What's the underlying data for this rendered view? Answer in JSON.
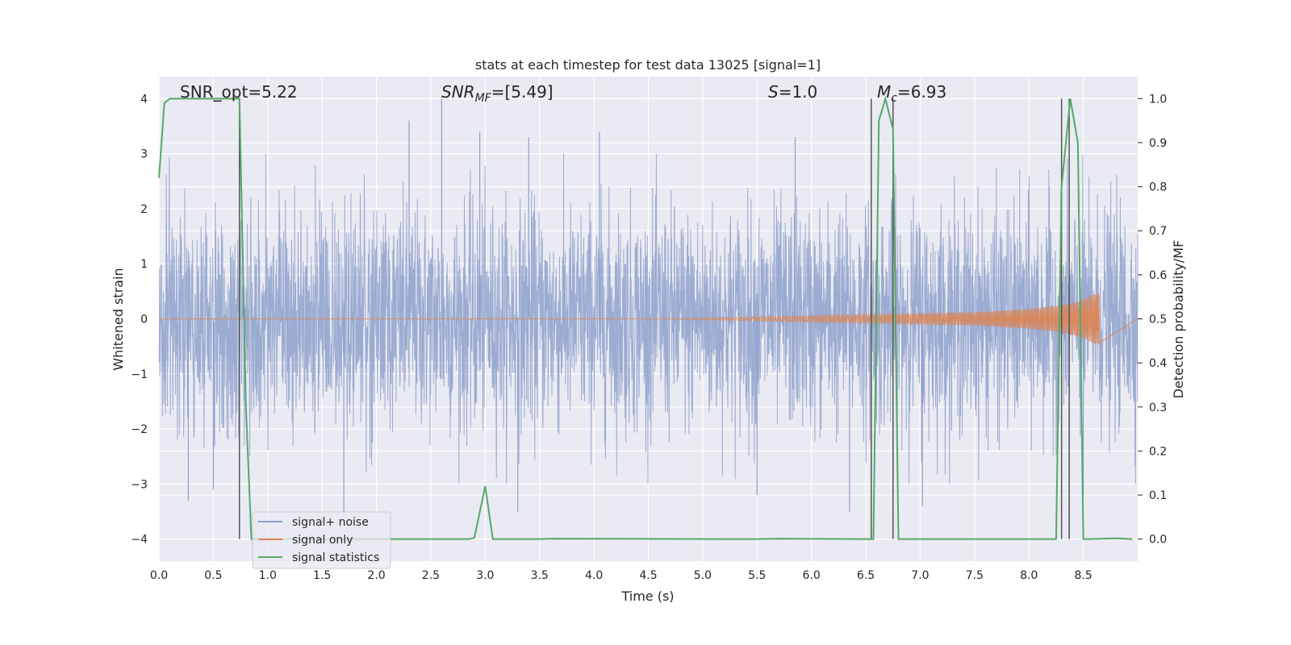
{
  "chart_data": {
    "type": "line",
    "title": "stats at each timestep for test data 13025 [signal=1]",
    "xlabel": "Time (s)",
    "ylabel": "Whitened strain",
    "ylabel_right": "Detection probability/MF",
    "xlim": [
      0.0,
      9.0
    ],
    "ylim": [
      -4.4,
      4.4
    ],
    "ylim_right": [
      -0.05,
      1.05
    ],
    "grid": true,
    "x_ticks": [
      "0.0",
      "0.5",
      "1.0",
      "1.5",
      "2.0",
      "2.5",
      "3.0",
      "3.5",
      "4.0",
      "4.5",
      "5.0",
      "5.5",
      "6.0",
      "6.5",
      "7.0",
      "7.5",
      "8.0",
      "8.5"
    ],
    "y_ticks": [
      "4",
      "3",
      "2",
      "1",
      "0",
      "−1",
      "−2",
      "−3",
      "−4"
    ],
    "y_ticks_right": [
      "1.0",
      "0.9",
      "0.8",
      "0.7",
      "0.6",
      "0.5",
      "0.4",
      "0.3",
      "0.2",
      "0.1",
      "0.0"
    ],
    "annotations": {
      "snr_opt": "SNR_opt=5.22",
      "snr_mf_main": "SNR",
      "snr_mf_sub": "MF",
      "snr_mf_val": "=[5.49]",
      "s_main": "S",
      "s_val": "=1.0",
      "mc_main": "M",
      "mc_sub": "c",
      "mc_val": "=6.93"
    },
    "legend": {
      "position": "lower-left",
      "entries": [
        "signal+ noise",
        "signal only",
        "signal statistics"
      ]
    },
    "colors": {
      "noise": "#8da0cb",
      "signal": "#dd8452",
      "statistics": "#55a868",
      "markers": "#555555",
      "background": "#eaeaf2",
      "grid": "#ffffff"
    },
    "series": [
      {
        "name": "signal+ noise",
        "axis": "left",
        "description_values": "white-noise strain, std approx 1.0, range approx [-3.6, 4.0]",
        "std": 1.0,
        "x_range": [
          0.0,
          9.0
        ],
        "peaks": [
          {
            "x": 0.27,
            "y": -3.3
          },
          {
            "x": 0.5,
            "y": -3.1
          },
          {
            "x": 1.7,
            "y": -3.6
          },
          {
            "x": 2.3,
            "y": 3.6
          },
          {
            "x": 2.6,
            "y": 4.0
          },
          {
            "x": 2.95,
            "y": 3.4
          },
          {
            "x": 3.3,
            "y": -3.5
          },
          {
            "x": 3.4,
            "y": 3.3
          },
          {
            "x": 4.05,
            "y": 3.4
          },
          {
            "x": 5.5,
            "y": -3.2
          },
          {
            "x": 5.85,
            "y": 3.3
          },
          {
            "x": 6.35,
            "y": -3.5
          },
          {
            "x": 7.02,
            "y": -3.4
          },
          {
            "x": 8.5,
            "y": -3.2
          }
        ]
      },
      {
        "name": "signal only",
        "axis": "left",
        "description_values": "chirp with growing amplitude, ~0 before 4.5 s, peak amplitude ~0.5 at ~8.65 s then ends",
        "amplitude_points": [
          {
            "x": 4.5,
            "amp": 0.0
          },
          {
            "x": 5.5,
            "amp": 0.04
          },
          {
            "x": 6.5,
            "amp": 0.08
          },
          {
            "x": 7.5,
            "amp": 0.12
          },
          {
            "x": 8.0,
            "amp": 0.18
          },
          {
            "x": 8.3,
            "amp": 0.25
          },
          {
            "x": 8.5,
            "amp": 0.35
          },
          {
            "x": 8.65,
            "amp": 0.5
          }
        ]
      },
      {
        "name": "signal statistics",
        "axis": "right",
        "x": [
          0.0,
          0.05,
          0.1,
          0.15,
          0.7,
          0.74,
          0.8,
          0.85,
          0.9,
          1.0,
          2.0,
          2.85,
          2.9,
          3.0,
          3.07,
          3.5,
          3.6,
          5.5,
          5.7,
          6.5,
          6.57,
          6.62,
          6.68,
          6.75,
          6.8,
          6.85,
          7.0,
          8.25,
          8.3,
          8.38,
          8.45,
          8.5,
          8.55,
          8.8,
          8.95
        ],
        "y": [
          0.82,
          0.99,
          1.0,
          1.0,
          1.0,
          1.0,
          0.3,
          0.0,
          0.0,
          0.0,
          0.0,
          0.0,
          0.003,
          0.12,
          0.0,
          0.0,
          0.001,
          0.0,
          0.001,
          0.0,
          0.0,
          0.95,
          1.0,
          0.93,
          0.0,
          0.0,
          0.0,
          0.0,
          0.8,
          1.0,
          0.9,
          0.0,
          0.0,
          0.002,
          0.0
        ]
      }
    ],
    "vertical_markers": [
      {
        "x": 0.74,
        "ymin": -4.0,
        "ymax": 4.0
      },
      {
        "x": 6.55,
        "ymin": -4.0,
        "ymax": 4.0
      },
      {
        "x": 6.75,
        "ymin": -4.0,
        "ymax": 4.0
      },
      {
        "x": 8.3,
        "ymin": -4.0,
        "ymax": 4.0
      },
      {
        "x": 8.37,
        "ymin": -4.0,
        "ymax": 4.0
      }
    ]
  }
}
